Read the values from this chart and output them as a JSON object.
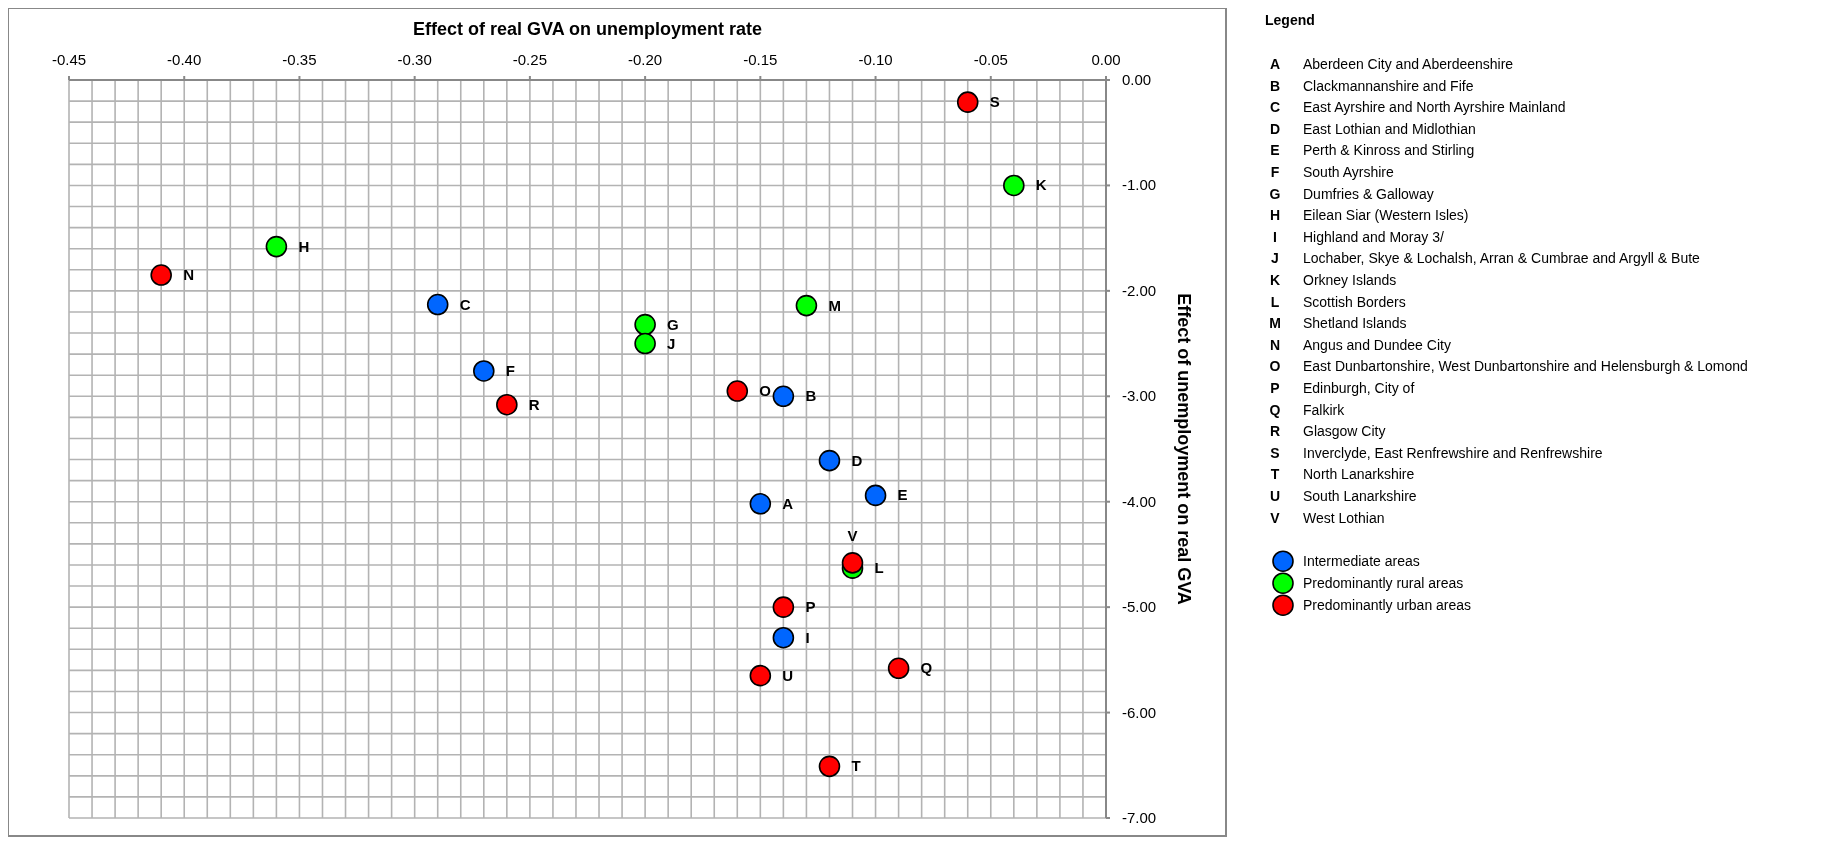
{
  "chart_data": {
    "type": "scatter",
    "xlabel": "Effect of real GVA on unemployment rate",
    "ylabel": "Effect of unemployment on real GVA",
    "legend_title": "Legend",
    "legend": "right",
    "marker": "circle",
    "grid": true,
    "xlim": [
      -0.45,
      0
    ],
    "ylim": [
      -7,
      0
    ],
    "xticks": [
      {
        "value": -0.45,
        "label": "-0.45"
      },
      {
        "value": -0.44,
        "label": null
      },
      {
        "value": -0.43,
        "label": null
      },
      {
        "value": -0.42,
        "label": null
      },
      {
        "value": -0.41,
        "label": null
      },
      {
        "value": -0.4,
        "label": "-0.40"
      },
      {
        "value": -0.39,
        "label": null
      },
      {
        "value": -0.38,
        "label": null
      },
      {
        "value": -0.37,
        "label": null
      },
      {
        "value": -0.36,
        "label": null
      },
      {
        "value": -0.35,
        "label": "-0.35"
      },
      {
        "value": -0.34,
        "label": null
      },
      {
        "value": -0.33,
        "label": null
      },
      {
        "value": -0.32,
        "label": null
      },
      {
        "value": -0.31,
        "label": null
      },
      {
        "value": -0.3,
        "label": "-0.30"
      },
      {
        "value": -0.29,
        "label": null
      },
      {
        "value": -0.28,
        "label": null
      },
      {
        "value": -0.27,
        "label": null
      },
      {
        "value": -0.26,
        "label": null
      },
      {
        "value": -0.25,
        "label": "-0.25"
      },
      {
        "value": -0.24,
        "label": null
      },
      {
        "value": -0.23,
        "label": null
      },
      {
        "value": -0.22,
        "label": null
      },
      {
        "value": -0.21,
        "label": null
      },
      {
        "value": -0.2,
        "label": "-0.20"
      },
      {
        "value": -0.19,
        "label": null
      },
      {
        "value": -0.18,
        "label": null
      },
      {
        "value": -0.17,
        "label": null
      },
      {
        "value": -0.16,
        "label": null
      },
      {
        "value": -0.15,
        "label": "-0.15"
      },
      {
        "value": -0.14,
        "label": null
      },
      {
        "value": -0.13,
        "label": null
      },
      {
        "value": -0.12,
        "label": null
      },
      {
        "value": -0.11,
        "label": null
      },
      {
        "value": -0.1,
        "label": "-0.10"
      },
      {
        "value": -0.09,
        "label": null
      },
      {
        "value": -0.08,
        "label": null
      },
      {
        "value": -0.07,
        "label": null
      },
      {
        "value": -0.06,
        "label": null
      },
      {
        "value": -0.05,
        "label": "-0.05"
      },
      {
        "value": -0.04,
        "label": null
      },
      {
        "value": -0.03,
        "label": null
      },
      {
        "value": -0.02,
        "label": null
      },
      {
        "value": -0.01,
        "label": null
      },
      {
        "value": 0,
        "label": "0.00"
      }
    ],
    "yticks": [
      {
        "value": 0,
        "label": "0.00"
      },
      {
        "value": -0.2,
        "label": null
      },
      {
        "value": -0.4,
        "label": null
      },
      {
        "value": -0.6,
        "label": null
      },
      {
        "value": -0.8,
        "label": null
      },
      {
        "value": -1,
        "label": "-1.00"
      },
      {
        "value": -1.2,
        "label": null
      },
      {
        "value": -1.4,
        "label": null
      },
      {
        "value": -1.6,
        "label": null
      },
      {
        "value": -1.8,
        "label": null
      },
      {
        "value": -2,
        "label": "-2.00"
      },
      {
        "value": -2.2,
        "label": null
      },
      {
        "value": -2.4,
        "label": null
      },
      {
        "value": -2.6,
        "label": null
      },
      {
        "value": -2.8,
        "label": null
      },
      {
        "value": -3,
        "label": "-3.00"
      },
      {
        "value": -3.2,
        "label": null
      },
      {
        "value": -3.4,
        "label": null
      },
      {
        "value": -3.6,
        "label": null
      },
      {
        "value": -3.8,
        "label": null
      },
      {
        "value": -4,
        "label": "-4.00"
      },
      {
        "value": -4.2,
        "label": null
      },
      {
        "value": -4.4,
        "label": null
      },
      {
        "value": -4.6,
        "label": null
      },
      {
        "value": -4.8,
        "label": null
      },
      {
        "value": -5,
        "label": "-5.00"
      },
      {
        "value": -5.2,
        "label": null
      },
      {
        "value": -5.4,
        "label": null
      },
      {
        "value": -5.6,
        "label": null
      },
      {
        "value": -5.8,
        "label": null
      },
      {
        "value": -6,
        "label": "-6.00"
      },
      {
        "value": -6.2,
        "label": null
      },
      {
        "value": -6.4,
        "label": null
      },
      {
        "value": -6.6,
        "label": null
      },
      {
        "value": -6.8,
        "label": null
      },
      {
        "value": -7,
        "label": "-7.00"
      }
    ],
    "series": [
      {
        "name": "Intermediate areas",
        "color": "#0066ff",
        "x": [
          -0.15,
          -0.14,
          -0.29,
          -0.12,
          -0.1,
          -0.27,
          -0.14
        ],
        "values": [
          -4.02,
          -3.0,
          -2.13,
          -3.61,
          -3.94,
          -2.76,
          -5.29
        ]
      },
      {
        "name": "Predominantly rural areas",
        "color": "#00ff00",
        "x": [
          -0.2,
          -0.36,
          -0.2,
          -0.04,
          -0.11,
          -0.13
        ],
        "values": [
          -2.32,
          -1.58,
          -2.5,
          -1.0,
          -4.63,
          -2.14
        ]
      },
      {
        "name": "Predominantly urban areas",
        "color": "#ff0000",
        "x": [
          -0.41,
          -0.16,
          -0.14,
          -0.09,
          -0.26,
          -0.06,
          -0.12,
          -0.15,
          -0.11
        ],
        "values": [
          -1.85,
          -2.95,
          -5.0,
          -5.58,
          -3.08,
          -0.21,
          -6.51,
          -5.65,
          -4.58
        ]
      }
    ],
    "annotations": [
      {
        "text": "A",
        "x": -0.15,
        "y": -4.02
      },
      {
        "text": "B",
        "x": -0.14,
        "y": -3.0
      },
      {
        "text": "C",
        "x": -0.29,
        "y": -2.13
      },
      {
        "text": "D",
        "x": -0.12,
        "y": -3.61
      },
      {
        "text": "E",
        "x": -0.1,
        "y": -3.94
      },
      {
        "text": "F",
        "x": -0.27,
        "y": -2.76
      },
      {
        "text": "I",
        "x": -0.14,
        "y": -5.29
      },
      {
        "text": "G",
        "x": -0.2,
        "y": -2.32
      },
      {
        "text": "H",
        "x": -0.36,
        "y": -1.58
      },
      {
        "text": "J",
        "x": -0.2,
        "y": -2.5
      },
      {
        "text": "K",
        "x": -0.04,
        "y": -1.0
      },
      {
        "text": "L",
        "x": -0.11,
        "y": -4.63
      },
      {
        "text": "M",
        "x": -0.13,
        "y": -2.14
      },
      {
        "text": "N",
        "x": -0.41,
        "y": -1.85
      },
      {
        "text": "O",
        "x": -0.16,
        "y": -2.95
      },
      {
        "text": "P",
        "x": -0.14,
        "y": -5.0
      },
      {
        "text": "Q",
        "x": -0.09,
        "y": -5.58
      },
      {
        "text": "R",
        "x": -0.26,
        "y": -3.08
      },
      {
        "text": "S",
        "x": -0.06,
        "y": -0.21
      },
      {
        "text": "T",
        "x": -0.12,
        "y": -6.51
      },
      {
        "text": "U",
        "x": -0.15,
        "y": -5.65
      },
      {
        "text": "V",
        "x": -0.11,
        "y": -4.58
      },
      "A Aberdeen City and Aberdeenshire",
      "B Clackmannanshire and Fife",
      "C East Ayrshire and North Ayrshire Mainland",
      "D East Lothian and Midlothian",
      "E Perth & Kinross and Stirling",
      "F South Ayrshire",
      "G Dumfries & Galloway",
      "H Eilean Siar (Western Isles)",
      "I Highland and Moray 3/",
      "J Lochaber, Skye & Lochalsh, Arran & Cumbrae and Argyll & Bute",
      "K Orkney Islands",
      "L Scottish Borders",
      "M Shetland Islands",
      "N Angus and Dundee City",
      "O East Dunbartonshire, West Dunbartonshire and Helensburgh & Lomond",
      "P Edinburgh, City of",
      "Q Falkirk",
      "R Glasgow City",
      "S Inverclyde, East Renfrewshire and Renfrewshire",
      "T North Lanarkshire",
      "U South Lanarkshire",
      "V West Lothian"
    ]
  }
}
